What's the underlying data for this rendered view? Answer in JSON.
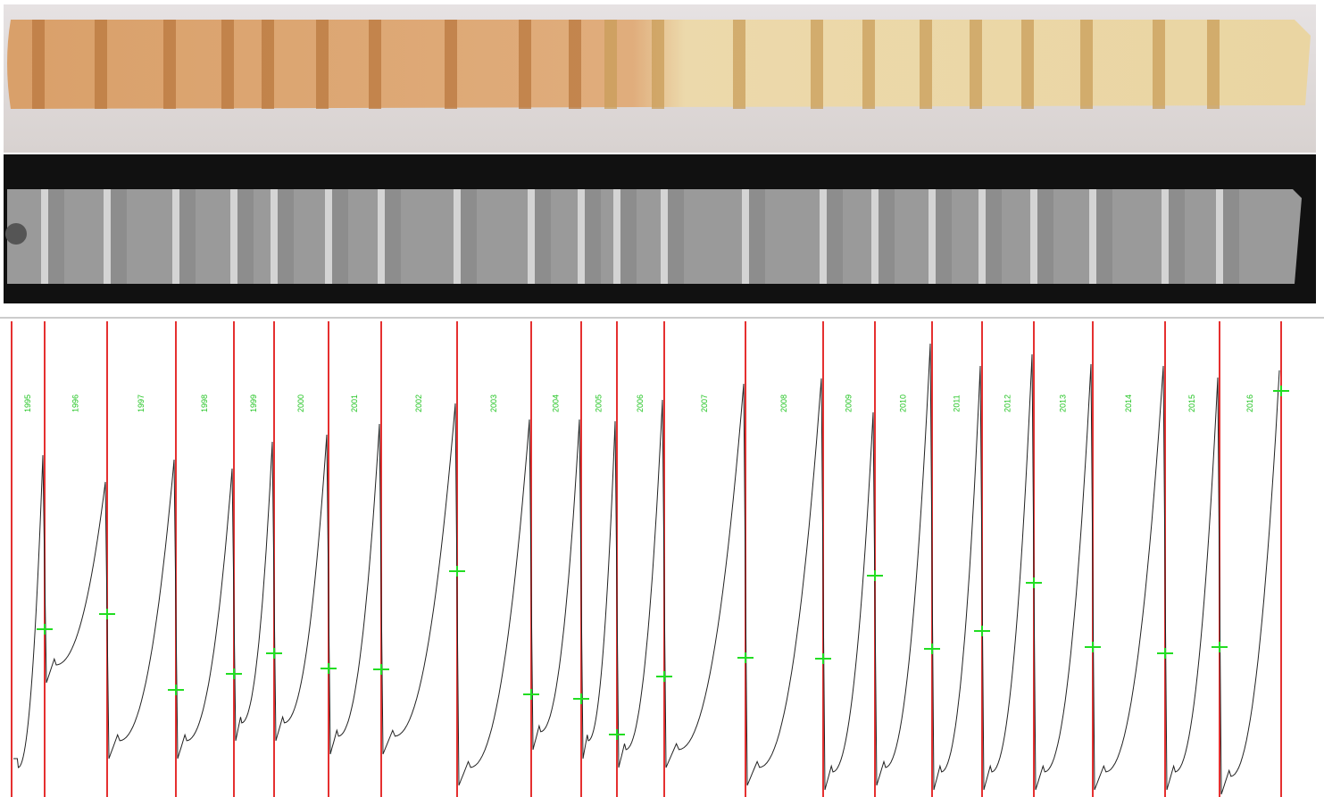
{
  "years": [
    "1995",
    "1996",
    "1997",
    "1998",
    "1999",
    "2000",
    "2001",
    "2002",
    "2003",
    "2004",
    "2005",
    "2006",
    "2007",
    "2008",
    "2009",
    "2010",
    "2011",
    "2012",
    "2013",
    "2014",
    "2015",
    "2016"
  ]
}
